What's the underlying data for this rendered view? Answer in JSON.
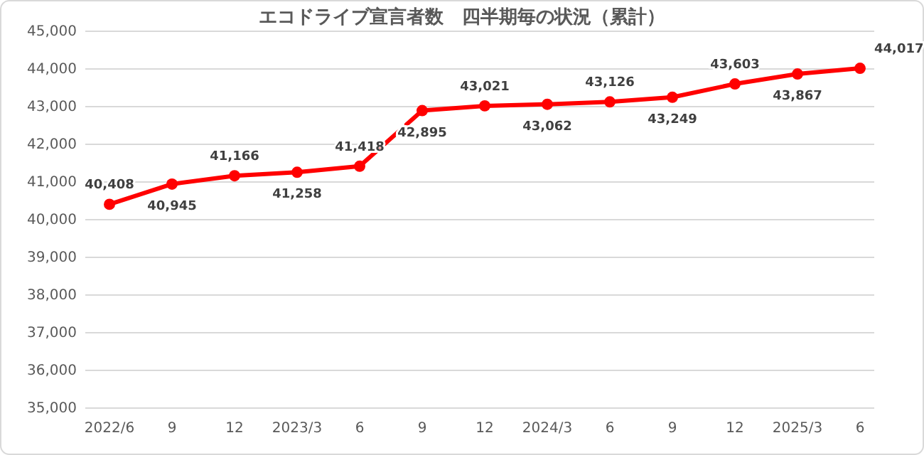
{
  "chart_data": {
    "type": "line",
    "title": "エコドライブ宣言者数　四半期毎の状況（累計）",
    "categories": [
      "2022/6",
      "9",
      "12",
      "2023/3",
      "6",
      "9",
      "12",
      "2024/3",
      "6",
      "9",
      "12",
      "2025/3",
      "6"
    ],
    "series": [
      {
        "color": "#ff0000",
        "values": [
          40408,
          40945,
          41166,
          41258,
          41418,
          42895,
          43021,
          43062,
          43126,
          43249,
          43603,
          43867,
          44017
        ],
        "value_labels": [
          "40,408",
          "40,945",
          "41,166",
          "41,258",
          "41,418",
          "42,895",
          "43,021",
          "43,062",
          "43,126",
          "43,249",
          "43,603",
          "43,867",
          "44,017"
        ]
      }
    ],
    "ylim": [
      35000,
      45000
    ],
    "yticks": [
      {
        "value": 35000,
        "label": "35,000"
      },
      {
        "value": 36000,
        "label": "36,000"
      },
      {
        "value": 37000,
        "label": "37,000"
      },
      {
        "value": 38000,
        "label": "38,000"
      },
      {
        "value": 39000,
        "label": "39,000"
      },
      {
        "value": 40000,
        "label": "40,000"
      },
      {
        "value": 41000,
        "label": "41,000"
      },
      {
        "value": 42000,
        "label": "42,000"
      },
      {
        "value": 43000,
        "label": "43,000"
      },
      {
        "value": 44000,
        "label": "44,000"
      },
      {
        "value": 45000,
        "label": "45,000"
      }
    ],
    "grid": "y",
    "marker": "circle",
    "line_style": "solid"
  }
}
